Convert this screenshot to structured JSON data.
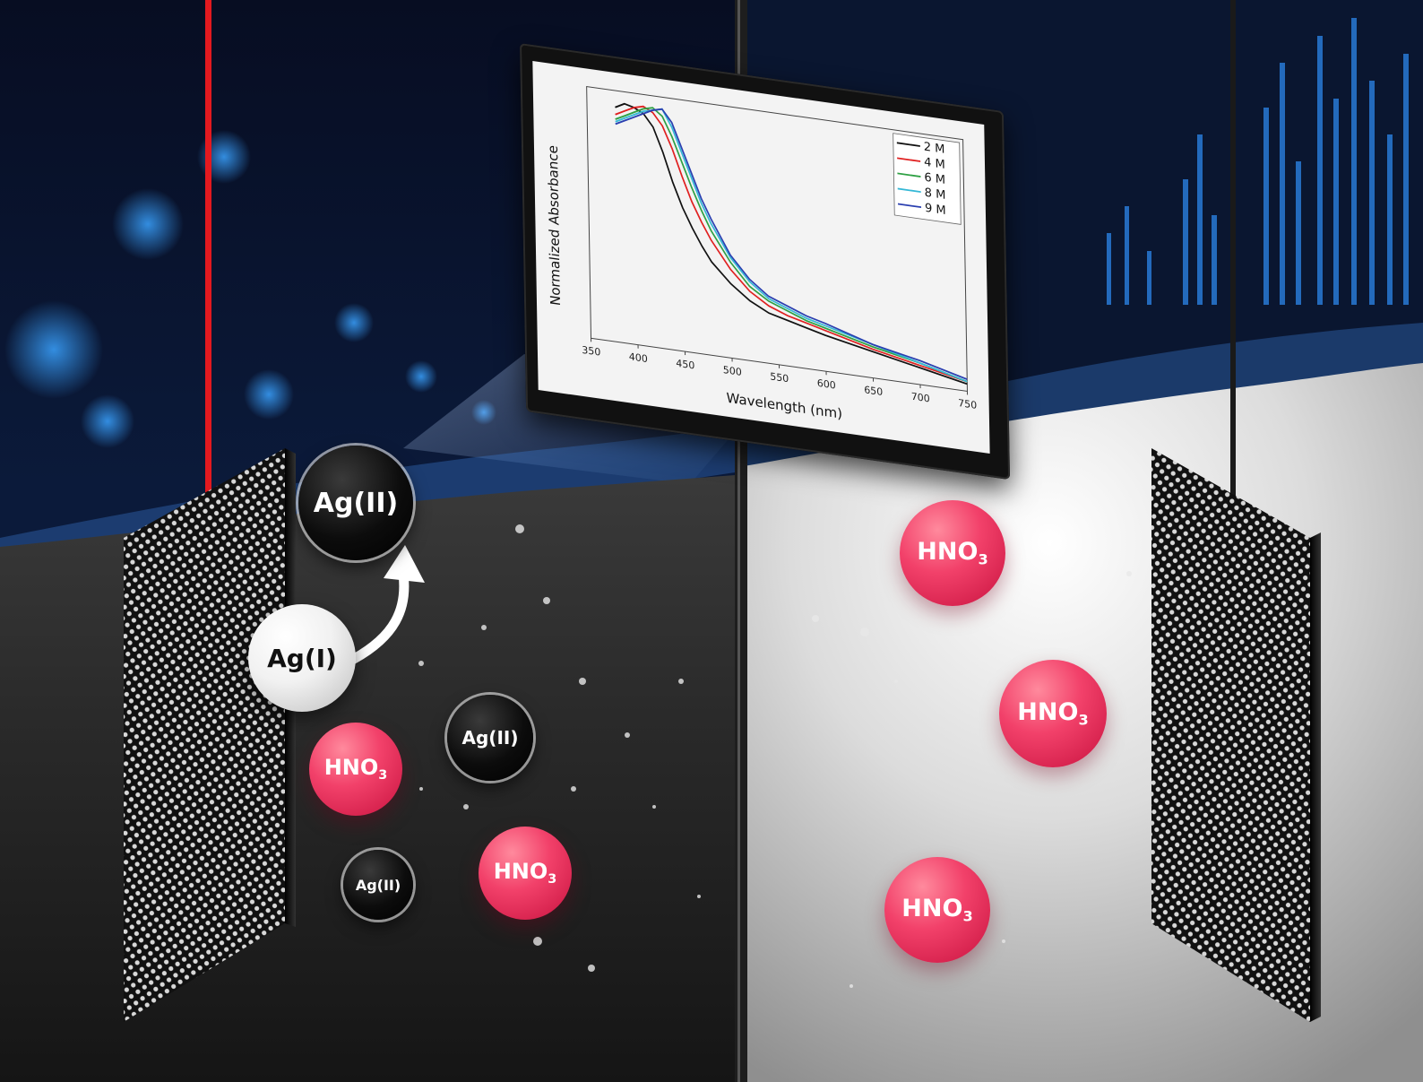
{
  "scene": {
    "monitor": {
      "chart_data": {
        "type": "line",
        "xlabel": "Wavelength (nm)",
        "ylabel": "Normalized Absorbance",
        "xlim": [
          350,
          750
        ],
        "ylim": [
          0,
          1.05
        ],
        "x_ticks": [
          "350",
          "400",
          "450",
          "500",
          "550",
          "600",
          "650",
          "700",
          "750"
        ],
        "x": [
          380,
          390,
          400,
          410,
          420,
          430,
          440,
          450,
          460,
          470,
          480,
          500,
          520,
          540,
          560,
          580,
          600,
          650,
          700,
          750
        ],
        "legend_placement": "top-right",
        "series": [
          {
            "name": "2 M",
            "color": "#111111",
            "values": [
              0.98,
              1.0,
              0.99,
              0.97,
              0.92,
              0.82,
              0.7,
              0.6,
              0.52,
              0.45,
              0.39,
              0.31,
              0.25,
              0.21,
              0.19,
              0.17,
              0.15,
              0.11,
              0.07,
              0.03
            ]
          },
          {
            "name": "4 M",
            "color": "#e02020",
            "values": [
              0.95,
              0.97,
              0.99,
              1.0,
              0.98,
              0.93,
              0.84,
              0.73,
              0.63,
              0.55,
              0.48,
              0.37,
              0.29,
              0.24,
              0.21,
              0.19,
              0.17,
              0.12,
              0.08,
              0.04
            ]
          },
          {
            "name": "6 M",
            "color": "#2ea043",
            "values": [
              0.93,
              0.95,
              0.97,
              0.99,
              1.0,
              0.97,
              0.89,
              0.79,
              0.69,
              0.6,
              0.52,
              0.4,
              0.31,
              0.26,
              0.23,
              0.2,
              0.18,
              0.13,
              0.09,
              0.04
            ]
          },
          {
            "name": "8 M",
            "color": "#35b8d6",
            "values": [
              0.92,
              0.94,
              0.96,
              0.98,
              0.99,
              1.0,
              0.93,
              0.83,
              0.73,
              0.63,
              0.55,
              0.42,
              0.33,
              0.27,
              0.24,
              0.21,
              0.19,
              0.14,
              0.09,
              0.04
            ]
          },
          {
            "name": "9 M",
            "color": "#2a3fb0",
            "values": [
              0.91,
              0.93,
              0.95,
              0.97,
              0.99,
              1.0,
              0.95,
              0.85,
              0.75,
              0.65,
              0.57,
              0.43,
              0.34,
              0.28,
              0.25,
              0.22,
              0.2,
              0.14,
              0.1,
              0.05
            ]
          }
        ]
      }
    },
    "labels": {
      "ag2_main": "Ag(II)",
      "ag1": "Ag(I)",
      "ag2_small_a": "Ag(II)",
      "ag2_small_b": "Ag(II)",
      "hno3_base": "HNO",
      "hno3_sub": "3"
    },
    "colors": {
      "wire_red": "#e3191f",
      "hno3_pink": "#f2416a",
      "glow_blue": "#2e8fff"
    }
  }
}
